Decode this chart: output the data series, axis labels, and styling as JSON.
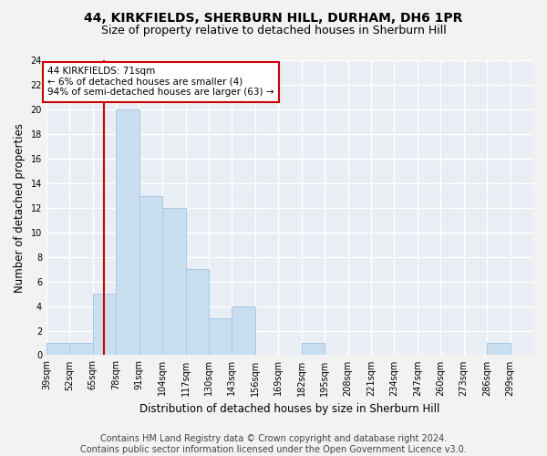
{
  "title1": "44, KIRKFIELDS, SHERBURN HILL, DURHAM, DH6 1PR",
  "title2": "Size of property relative to detached houses in Sherburn Hill",
  "xlabel": "Distribution of detached houses by size in Sherburn Hill",
  "ylabel": "Number of detached properties",
  "bin_edges": [
    39,
    52,
    65,
    78,
    91,
    104,
    117,
    130,
    143,
    156,
    169,
    182,
    195,
    208,
    221,
    234,
    247,
    260,
    273,
    286,
    299
  ],
  "bin_counts": [
    1,
    1,
    5,
    20,
    13,
    12,
    7,
    3,
    4,
    0,
    0,
    1,
    0,
    0,
    0,
    0,
    0,
    0,
    0,
    1
  ],
  "bar_color": "#c9dff0",
  "bar_edgecolor": "#a8c8e8",
  "property_line_x": 71,
  "property_line_color": "#cc0000",
  "annotation_text": "44 KIRKFIELDS: 71sqm\n← 6% of detached houses are smaller (4)\n94% of semi-detached houses are larger (63) →",
  "annotation_box_edgecolor": "#cc0000",
  "annotation_box_facecolor": "#ffffff",
  "ylim": [
    0,
    24
  ],
  "yticks": [
    0,
    2,
    4,
    6,
    8,
    10,
    12,
    14,
    16,
    18,
    20,
    22,
    24
  ],
  "tick_labels": [
    "39sqm",
    "52sqm",
    "65sqm",
    "78sqm",
    "91sqm",
    "104sqm",
    "117sqm",
    "130sqm",
    "143sqm",
    "156sqm",
    "169sqm",
    "182sqm",
    "195sqm",
    "208sqm",
    "221sqm",
    "234sqm",
    "247sqm",
    "260sqm",
    "273sqm",
    "286sqm",
    "299sqm"
  ],
  "footer_text": "Contains HM Land Registry data © Crown copyright and database right 2024.\nContains public sector information licensed under the Open Government Licence v3.0.",
  "plot_bg_color": "#e8eef4",
  "fig_bg_color": "#f2f2f2",
  "grid_color": "#ffffff",
  "title1_fontsize": 10,
  "title2_fontsize": 9,
  "xlabel_fontsize": 8.5,
  "ylabel_fontsize": 8.5,
  "footer_fontsize": 7,
  "annot_fontsize": 7.5,
  "tick_fontsize": 7
}
